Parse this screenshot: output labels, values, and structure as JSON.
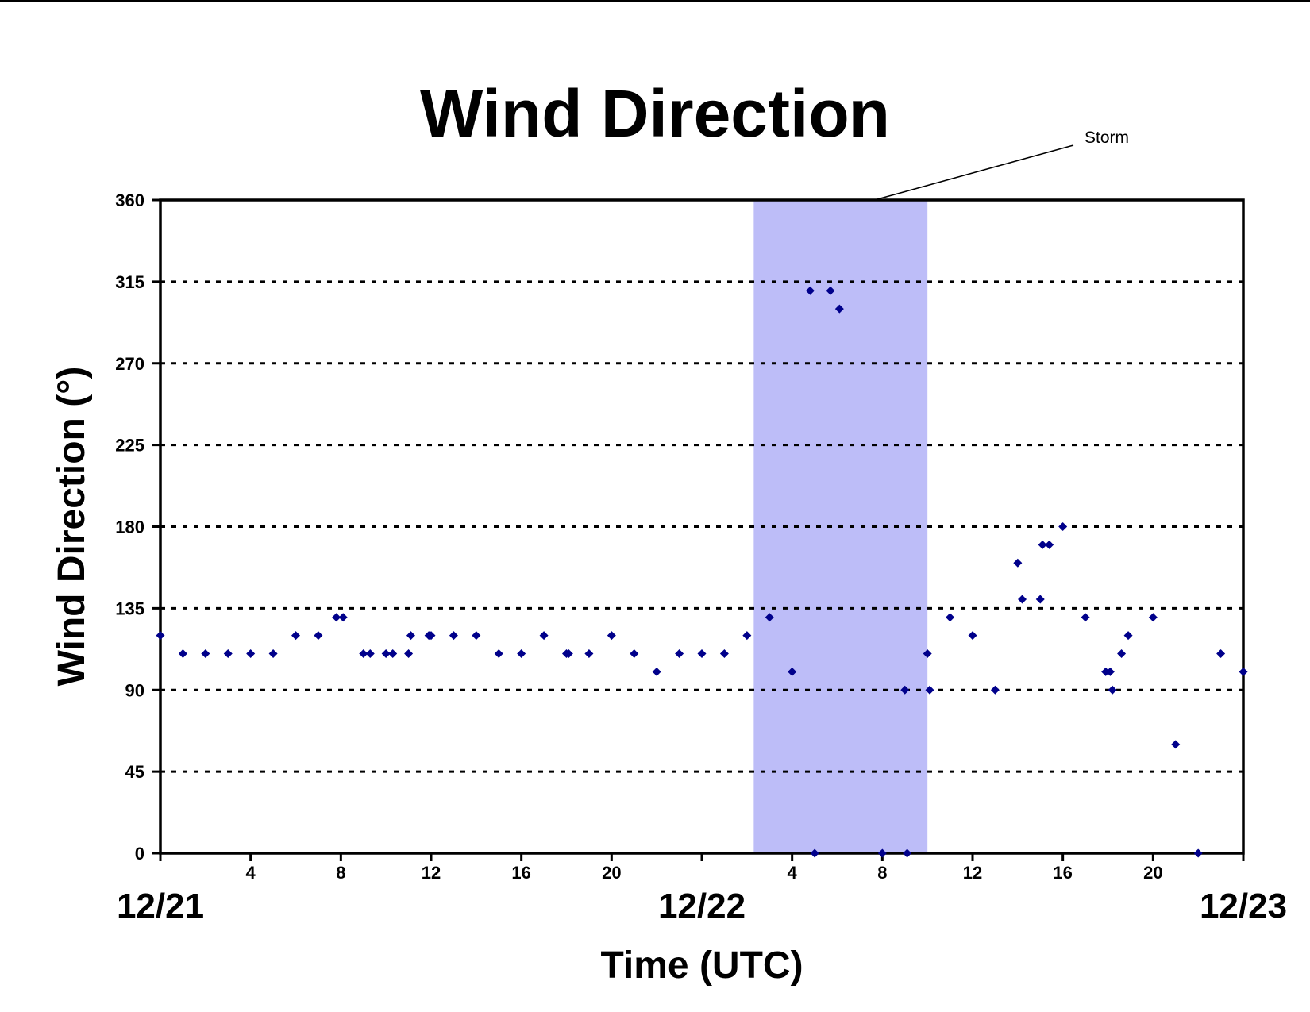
{
  "chart_data": {
    "type": "scatter",
    "title": "Wind Direction",
    "xlabel": "Time (UTC)",
    "ylabel": "Wind Direction (°)",
    "x_unit": "hours UTC from 12/21 00:00",
    "xlim": [
      0,
      48
    ],
    "ylim": [
      0,
      360
    ],
    "yticks": [
      0,
      45,
      90,
      135,
      180,
      225,
      270,
      315,
      360
    ],
    "grid": "horizontal dotted",
    "legend": "none",
    "marker_color": "#00008b",
    "shade_color": "#bdbdf8",
    "date_labels": [
      {
        "x": 0,
        "label": "12/21"
      },
      {
        "x": 24,
        "label": "12/22"
      },
      {
        "x": 48,
        "label": "12/23"
      }
    ],
    "hour_ticks": [
      {
        "x": 4,
        "label": "4"
      },
      {
        "x": 8,
        "label": "8"
      },
      {
        "x": 12,
        "label": "12"
      },
      {
        "x": 16,
        "label": "16"
      },
      {
        "x": 20,
        "label": "20"
      },
      {
        "x": 28,
        "label": "4"
      },
      {
        "x": 32,
        "label": "8"
      },
      {
        "x": 36,
        "label": "12"
      },
      {
        "x": 40,
        "label": "16"
      },
      {
        "x": 44,
        "label": "20"
      }
    ],
    "shaded_region": {
      "label": "Storm",
      "x_start": 26.3,
      "x_end": 34
    },
    "series": [
      {
        "points": [
          [
            0,
            120
          ],
          [
            1,
            110
          ],
          [
            2,
            110
          ],
          [
            3,
            110
          ],
          [
            4,
            110
          ],
          [
            5,
            110
          ],
          [
            6,
            120
          ],
          [
            7,
            120
          ],
          [
            7.8,
            130
          ],
          [
            8.1,
            130
          ],
          [
            9,
            110
          ],
          [
            9.3,
            110
          ],
          [
            10,
            110
          ],
          [
            10.3,
            110
          ],
          [
            11,
            110
          ],
          [
            11.1,
            120
          ],
          [
            11.9,
            120
          ],
          [
            12,
            120
          ],
          [
            13,
            120
          ],
          [
            14,
            120
          ],
          [
            15,
            110
          ],
          [
            16,
            110
          ],
          [
            17,
            120
          ],
          [
            18,
            110
          ],
          [
            18.1,
            110
          ],
          [
            19,
            110
          ],
          [
            20,
            120
          ],
          [
            21,
            110
          ],
          [
            22,
            100
          ],
          [
            23,
            110
          ],
          [
            24,
            110
          ],
          [
            25,
            110
          ],
          [
            26,
            120
          ],
          [
            27,
            130
          ],
          [
            28,
            100
          ],
          [
            28.8,
            310
          ],
          [
            29,
            0
          ],
          [
            29.7,
            310
          ],
          [
            30.1,
            300
          ],
          [
            32,
            0
          ],
          [
            33,
            90
          ],
          [
            33.1,
            0
          ],
          [
            34,
            110
          ],
          [
            34.1,
            90
          ],
          [
            35,
            130
          ],
          [
            36,
            120
          ],
          [
            37,
            90
          ],
          [
            38,
            160
          ],
          [
            38.2,
            140
          ],
          [
            39,
            140
          ],
          [
            39.1,
            170
          ],
          [
            39.4,
            170
          ],
          [
            40,
            180
          ],
          [
            41,
            130
          ],
          [
            41.9,
            100
          ],
          [
            42.1,
            100
          ],
          [
            42.2,
            90
          ],
          [
            42.6,
            110
          ],
          [
            42.9,
            120
          ],
          [
            44,
            130
          ],
          [
            45,
            60
          ],
          [
            46,
            0
          ],
          [
            47,
            110
          ],
          [
            48,
            100
          ]
        ]
      }
    ]
  }
}
